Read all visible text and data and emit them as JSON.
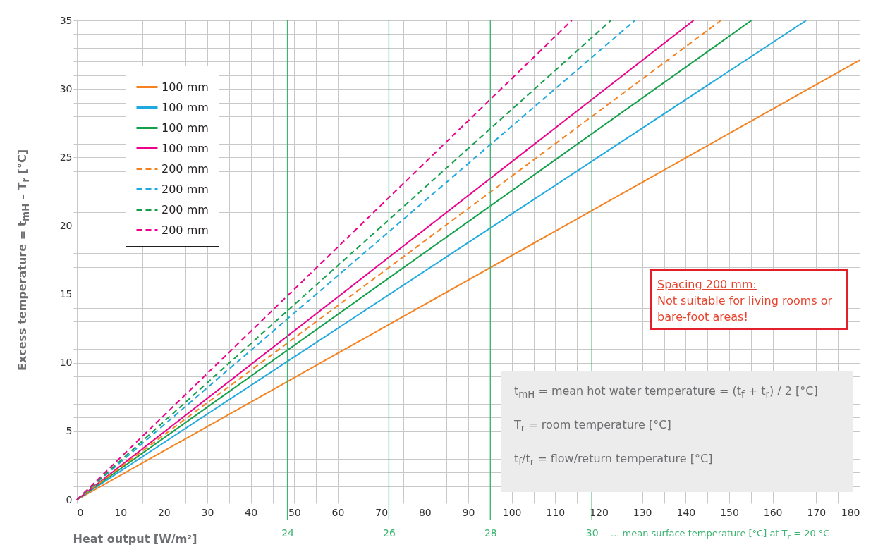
{
  "chart_data": {
    "type": "line",
    "xlabel": "Heat output [W/m²]",
    "ylabel": "Excess temperature = t$_{mH}$ – T$_{r}$ [°C]",
    "xlim": [
      0,
      180
    ],
    "ylim": [
      0,
      35
    ],
    "xticks": [
      0,
      {
        "value": 5,
        "label": null
      },
      10,
      {
        "value": 15,
        "label": null
      },
      20,
      {
        "value": 25,
        "label": null
      },
      30,
      {
        "value": 35,
        "label": null
      },
      40,
      {
        "value": 45,
        "label": null
      },
      50,
      {
        "value": 55,
        "label": null
      },
      60,
      {
        "value": 65,
        "label": null
      },
      70,
      {
        "value": 75,
        "label": null
      },
      80,
      {
        "value": 85,
        "label": null
      },
      90,
      {
        "value": 95,
        "label": null
      },
      100,
      {
        "value": 105,
        "label": null
      },
      110,
      {
        "value": 115,
        "label": null
      },
      120,
      {
        "value": 125,
        "label": null
      },
      130,
      {
        "value": 135,
        "label": null
      },
      140,
      {
        "value": 145,
        "label": null
      },
      150,
      {
        "value": 155,
        "label": null
      },
      160,
      {
        "value": 165,
        "label": null
      },
      170,
      {
        "value": 175,
        "label": null
      },
      180
    ],
    "yticks": [
      0,
      {
        "value": 1,
        "label": null
      },
      {
        "value": 2,
        "label": null
      },
      {
        "value": 3,
        "label": null
      },
      {
        "value": 4,
        "label": null
      },
      5,
      {
        "value": 6,
        "label": null
      },
      {
        "value": 7,
        "label": null
      },
      {
        "value": 8,
        "label": null
      },
      {
        "value": 9,
        "label": null
      },
      10,
      {
        "value": 11,
        "label": null
      },
      {
        "value": 12,
        "label": null
      },
      {
        "value": 13,
        "label": null
      },
      {
        "value": 14,
        "label": null
      },
      15,
      {
        "value": 16,
        "label": null
      },
      {
        "value": 17,
        "label": null
      },
      {
        "value": 18,
        "label": null
      },
      {
        "value": 19,
        "label": null
      },
      20,
      {
        "value": 21,
        "label": null
      },
      {
        "value": 22,
        "label": null
      },
      {
        "value": 23,
        "label": null
      },
      {
        "value": 24,
        "label": null
      },
      25,
      {
        "value": 26,
        "label": null
      },
      {
        "value": 27,
        "label": null
      },
      {
        "value": 28,
        "label": null
      },
      {
        "value": 29,
        "label": null
      },
      30,
      {
        "value": 31,
        "label": null
      },
      {
        "value": 32,
        "label": null
      },
      {
        "value": 33,
        "label": null
      },
      {
        "value": 34,
        "label": null
      },
      35
    ],
    "grid": true,
    "legend": "top left",
    "marker": "none",
    "series": [
      {
        "name": "100 mm",
        "color": "#f5821f",
        "line_style": "solid",
        "x": [
          0,
          180
        ],
        "values": [
          0,
          32.1
        ]
      },
      {
        "name": "100 mm",
        "color": "#1ea9e1",
        "line_style": "solid",
        "x": [
          0,
          167.7
        ],
        "values": [
          0,
          35
        ]
      },
      {
        "name": "100 mm",
        "color": "#12a04a",
        "line_style": "solid",
        "x": [
          0,
          155.1
        ],
        "values": [
          0,
          35
        ]
      },
      {
        "name": "100 mm",
        "color": "#ec008c",
        "line_style": "solid",
        "x": [
          0,
          141.8
        ],
        "values": [
          0,
          35
        ]
      },
      {
        "name": "200 mm",
        "color": "#f5821f",
        "line_style": "dashed",
        "x": [
          0,
          148.1
        ],
        "values": [
          0,
          35
        ]
      },
      {
        "name": "200 mm",
        "color": "#1ea9e1",
        "line_style": "dashed",
        "x": [
          0,
          128.3
        ],
        "values": [
          0,
          35
        ]
      },
      {
        "name": "200 mm",
        "color": "#12a04a",
        "line_style": "dashed",
        "x": [
          0,
          122.8
        ],
        "values": [
          0,
          35
        ]
      },
      {
        "name": "200 mm",
        "color": "#ec008c",
        "line_style": "dashed",
        "x": [
          0,
          113.8
        ],
        "values": [
          0,
          35
        ]
      }
    ],
    "x2lim": [
      19.85,
      35.28
    ],
    "x2ticks": [
      24,
      26,
      28,
      30
    ],
    "x2label": "... mean surface temperature [°C] at T$_{r}$ = 20 °C",
    "annotations": [
      "Spacing 200 mm:",
      "Not suitable for living rooms or bare-foot areas!",
      "t$_{mH}$ = mean hot water temperature = (t$_{f}$ + t$_{r}$) / 2 [°C]",
      "T$_{r}$ = room temperature [°C]",
      "t$_{f}$/t$_{r}$ = flow/return temperature [°C]"
    ]
  }
}
